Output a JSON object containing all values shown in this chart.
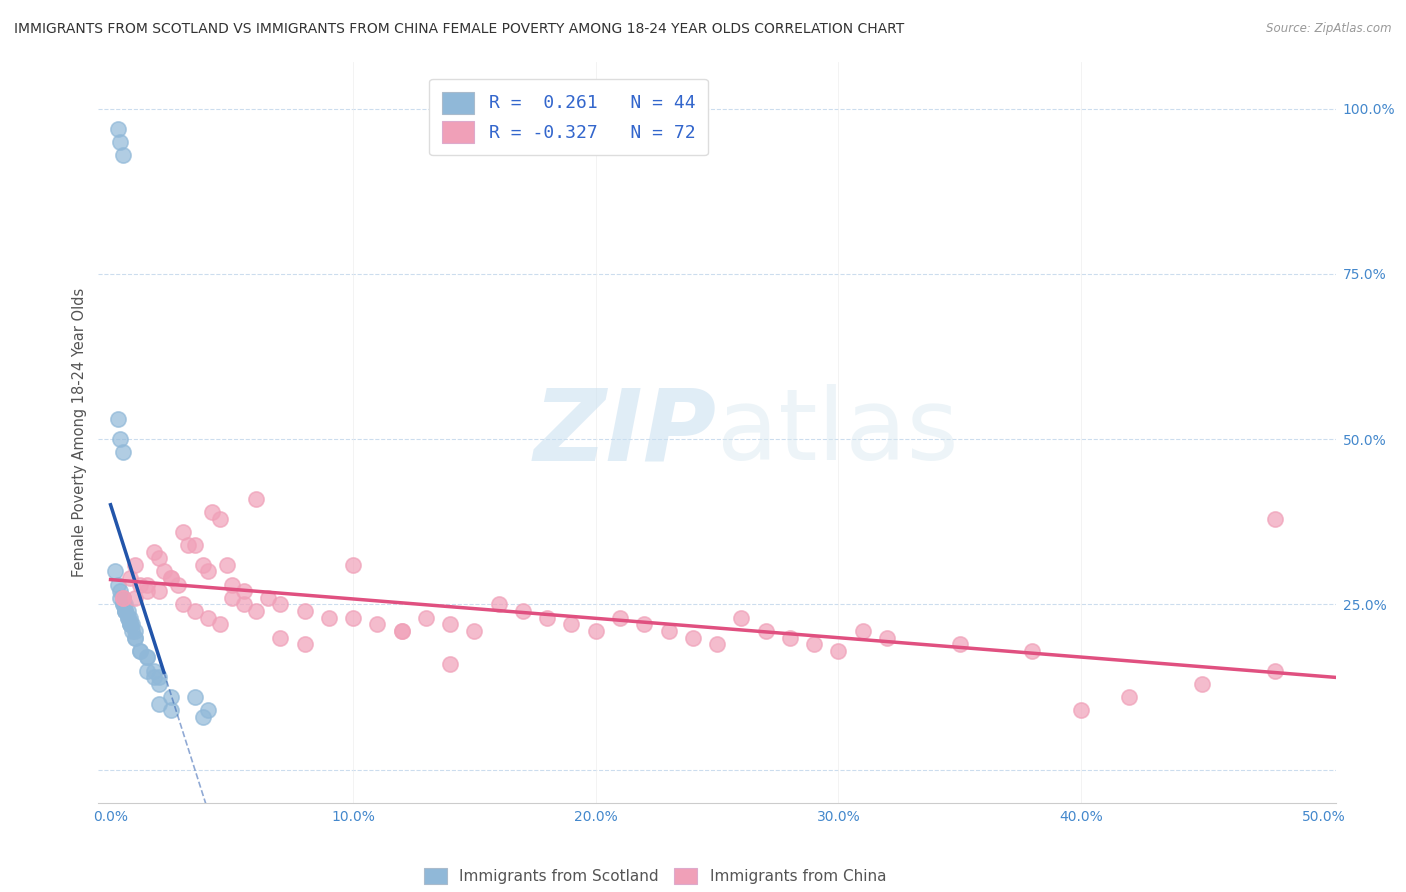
{
  "title": "IMMIGRANTS FROM SCOTLAND VS IMMIGRANTS FROM CHINA FEMALE POVERTY AMONG 18-24 YEAR OLDS CORRELATION CHART",
  "source": "Source: ZipAtlas.com",
  "ylabel": "Female Poverty Among 18-24 Year Olds",
  "xlim": [
    -0.005,
    0.505
  ],
  "ylim": [
    -0.05,
    1.07
  ],
  "scotland_color": "#90b8d8",
  "china_color": "#f0a0b8",
  "scotland_line_color": "#2255aa",
  "china_line_color": "#e05080",
  "scotland_R": 0.261,
  "scotland_N": 44,
  "china_R": -0.327,
  "china_N": 72,
  "legend_label_scotland": "Immigrants from Scotland",
  "legend_label_china": "Immigrants from China",
  "watermark_zip": "ZIP",
  "watermark_atlas": "atlas",
  "scotland_x": [
    0.003,
    0.004,
    0.005,
    0.003,
    0.004,
    0.005,
    0.002,
    0.003,
    0.004,
    0.005,
    0.006,
    0.004,
    0.005,
    0.006,
    0.007,
    0.008,
    0.005,
    0.006,
    0.007,
    0.008,
    0.009,
    0.01,
    0.006,
    0.007,
    0.008,
    0.009,
    0.008,
    0.01,
    0.012,
    0.015,
    0.01,
    0.012,
    0.015,
    0.018,
    0.02,
    0.015,
    0.018,
    0.02,
    0.025,
    0.02,
    0.025,
    0.035,
    0.038,
    0.04
  ],
  "scotland_y": [
    0.97,
    0.95,
    0.93,
    0.53,
    0.5,
    0.48,
    0.3,
    0.28,
    0.26,
    0.25,
    0.24,
    0.27,
    0.25,
    0.24,
    0.23,
    0.22,
    0.26,
    0.25,
    0.24,
    0.23,
    0.22,
    0.21,
    0.24,
    0.23,
    0.22,
    0.21,
    0.22,
    0.2,
    0.18,
    0.17,
    0.2,
    0.18,
    0.17,
    0.15,
    0.14,
    0.15,
    0.14,
    0.13,
    0.11,
    0.1,
    0.09,
    0.11,
    0.08,
    0.09
  ],
  "china_x": [
    0.005,
    0.008,
    0.01,
    0.012,
    0.015,
    0.018,
    0.02,
    0.022,
    0.025,
    0.028,
    0.03,
    0.032,
    0.035,
    0.038,
    0.04,
    0.042,
    0.045,
    0.048,
    0.05,
    0.055,
    0.06,
    0.065,
    0.07,
    0.08,
    0.09,
    0.1,
    0.11,
    0.12,
    0.13,
    0.14,
    0.15,
    0.16,
    0.17,
    0.18,
    0.19,
    0.2,
    0.21,
    0.22,
    0.23,
    0.24,
    0.25,
    0.26,
    0.27,
    0.28,
    0.29,
    0.3,
    0.31,
    0.32,
    0.35,
    0.38,
    0.4,
    0.42,
    0.45,
    0.48,
    0.01,
    0.015,
    0.02,
    0.025,
    0.03,
    0.035,
    0.04,
    0.045,
    0.05,
    0.055,
    0.06,
    0.07,
    0.08,
    0.1,
    0.12,
    0.14,
    0.48,
    0.005
  ],
  "china_y": [
    0.26,
    0.29,
    0.31,
    0.28,
    0.27,
    0.33,
    0.32,
    0.3,
    0.29,
    0.28,
    0.36,
    0.34,
    0.34,
    0.31,
    0.3,
    0.39,
    0.38,
    0.31,
    0.28,
    0.27,
    0.41,
    0.26,
    0.25,
    0.24,
    0.23,
    0.31,
    0.22,
    0.21,
    0.23,
    0.22,
    0.21,
    0.25,
    0.24,
    0.23,
    0.22,
    0.21,
    0.23,
    0.22,
    0.21,
    0.2,
    0.19,
    0.23,
    0.21,
    0.2,
    0.19,
    0.18,
    0.21,
    0.2,
    0.19,
    0.18,
    0.09,
    0.11,
    0.13,
    0.15,
    0.26,
    0.28,
    0.27,
    0.29,
    0.25,
    0.24,
    0.23,
    0.22,
    0.26,
    0.25,
    0.24,
    0.2,
    0.19,
    0.23,
    0.21,
    0.16,
    0.38,
    0.26
  ]
}
